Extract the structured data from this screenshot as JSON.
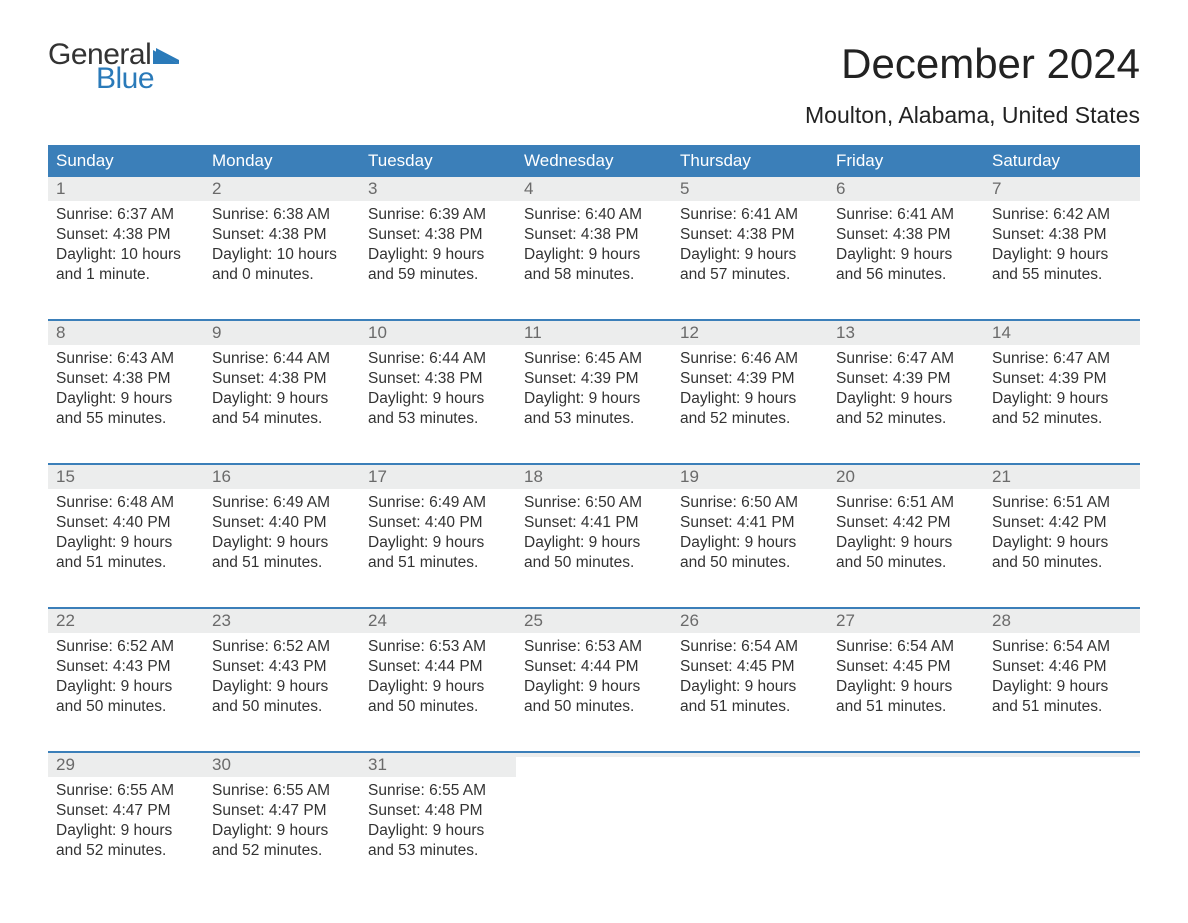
{
  "brand": {
    "word1": "General",
    "word2": "Blue",
    "flag_color": "#2a7ab9"
  },
  "title": "December 2024",
  "subtitle": "Moulton, Alabama, United States",
  "colors": {
    "header_bg": "#3b7fb9",
    "header_text": "#ffffff",
    "daynum_bg": "#eceded",
    "daynum_text": "#6a6a6a",
    "body_text": "#333333",
    "rule": "#3b7fb9",
    "page_bg": "#ffffff"
  },
  "weekday_labels": [
    "Sunday",
    "Monday",
    "Tuesday",
    "Wednesday",
    "Thursday",
    "Friday",
    "Saturday"
  ],
  "labels": {
    "sunrise": "Sunrise:",
    "sunset": "Sunset:",
    "daylight": "Daylight:"
  },
  "weeks": [
    [
      {
        "day": "1",
        "sunrise": "6:37 AM",
        "sunset": "4:38 PM",
        "daylight": "10 hours and 1 minute."
      },
      {
        "day": "2",
        "sunrise": "6:38 AM",
        "sunset": "4:38 PM",
        "daylight": "10 hours and 0 minutes."
      },
      {
        "day": "3",
        "sunrise": "6:39 AM",
        "sunset": "4:38 PM",
        "daylight": "9 hours and 59 minutes."
      },
      {
        "day": "4",
        "sunrise": "6:40 AM",
        "sunset": "4:38 PM",
        "daylight": "9 hours and 58 minutes."
      },
      {
        "day": "5",
        "sunrise": "6:41 AM",
        "sunset": "4:38 PM",
        "daylight": "9 hours and 57 minutes."
      },
      {
        "day": "6",
        "sunrise": "6:41 AM",
        "sunset": "4:38 PM",
        "daylight": "9 hours and 56 minutes."
      },
      {
        "day": "7",
        "sunrise": "6:42 AM",
        "sunset": "4:38 PM",
        "daylight": "9 hours and 55 minutes."
      }
    ],
    [
      {
        "day": "8",
        "sunrise": "6:43 AM",
        "sunset": "4:38 PM",
        "daylight": "9 hours and 55 minutes."
      },
      {
        "day": "9",
        "sunrise": "6:44 AM",
        "sunset": "4:38 PM",
        "daylight": "9 hours and 54 minutes."
      },
      {
        "day": "10",
        "sunrise": "6:44 AM",
        "sunset": "4:38 PM",
        "daylight": "9 hours and 53 minutes."
      },
      {
        "day": "11",
        "sunrise": "6:45 AM",
        "sunset": "4:39 PM",
        "daylight": "9 hours and 53 minutes."
      },
      {
        "day": "12",
        "sunrise": "6:46 AM",
        "sunset": "4:39 PM",
        "daylight": "9 hours and 52 minutes."
      },
      {
        "day": "13",
        "sunrise": "6:47 AM",
        "sunset": "4:39 PM",
        "daylight": "9 hours and 52 minutes."
      },
      {
        "day": "14",
        "sunrise": "6:47 AM",
        "sunset": "4:39 PM",
        "daylight": "9 hours and 52 minutes."
      }
    ],
    [
      {
        "day": "15",
        "sunrise": "6:48 AM",
        "sunset": "4:40 PM",
        "daylight": "9 hours and 51 minutes."
      },
      {
        "day": "16",
        "sunrise": "6:49 AM",
        "sunset": "4:40 PM",
        "daylight": "9 hours and 51 minutes."
      },
      {
        "day": "17",
        "sunrise": "6:49 AM",
        "sunset": "4:40 PM",
        "daylight": "9 hours and 51 minutes."
      },
      {
        "day": "18",
        "sunrise": "6:50 AM",
        "sunset": "4:41 PM",
        "daylight": "9 hours and 50 minutes."
      },
      {
        "day": "19",
        "sunrise": "6:50 AM",
        "sunset": "4:41 PM",
        "daylight": "9 hours and 50 minutes."
      },
      {
        "day": "20",
        "sunrise": "6:51 AM",
        "sunset": "4:42 PM",
        "daylight": "9 hours and 50 minutes."
      },
      {
        "day": "21",
        "sunrise": "6:51 AM",
        "sunset": "4:42 PM",
        "daylight": "9 hours and 50 minutes."
      }
    ],
    [
      {
        "day": "22",
        "sunrise": "6:52 AM",
        "sunset": "4:43 PM",
        "daylight": "9 hours and 50 minutes."
      },
      {
        "day": "23",
        "sunrise": "6:52 AM",
        "sunset": "4:43 PM",
        "daylight": "9 hours and 50 minutes."
      },
      {
        "day": "24",
        "sunrise": "6:53 AM",
        "sunset": "4:44 PM",
        "daylight": "9 hours and 50 minutes."
      },
      {
        "day": "25",
        "sunrise": "6:53 AM",
        "sunset": "4:44 PM",
        "daylight": "9 hours and 50 minutes."
      },
      {
        "day": "26",
        "sunrise": "6:54 AM",
        "sunset": "4:45 PM",
        "daylight": "9 hours and 51 minutes."
      },
      {
        "day": "27",
        "sunrise": "6:54 AM",
        "sunset": "4:45 PM",
        "daylight": "9 hours and 51 minutes."
      },
      {
        "day": "28",
        "sunrise": "6:54 AM",
        "sunset": "4:46 PM",
        "daylight": "9 hours and 51 minutes."
      }
    ],
    [
      {
        "day": "29",
        "sunrise": "6:55 AM",
        "sunset": "4:47 PM",
        "daylight": "9 hours and 52 minutes."
      },
      {
        "day": "30",
        "sunrise": "6:55 AM",
        "sunset": "4:47 PM",
        "daylight": "9 hours and 52 minutes."
      },
      {
        "day": "31",
        "sunrise": "6:55 AM",
        "sunset": "4:48 PM",
        "daylight": "9 hours and 53 minutes."
      },
      {
        "empty": true
      },
      {
        "empty": true
      },
      {
        "empty": true
      },
      {
        "empty": true
      }
    ]
  ]
}
